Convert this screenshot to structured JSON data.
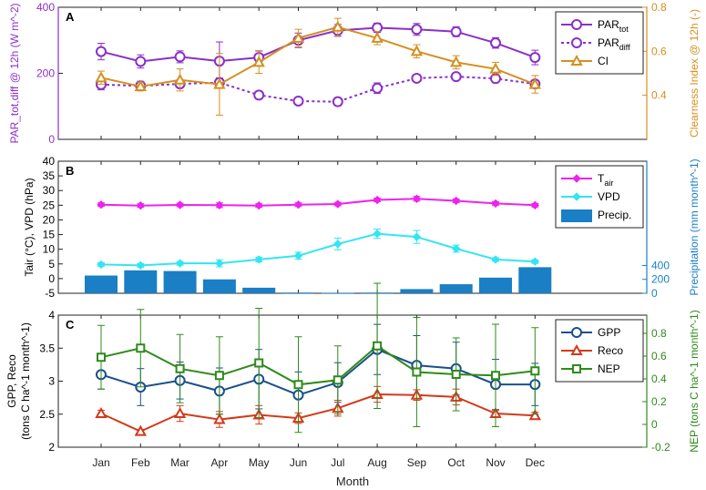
{
  "chart_data": [
    {
      "panel": "A",
      "type": "line",
      "categories": [
        "Jan",
        "Feb",
        "Mar",
        "Apr",
        "May",
        "Jun",
        "Jul",
        "Aug",
        "Sep",
        "Oct",
        "Nov",
        "Dec"
      ],
      "ylabel_left": "PAR_tot,diff @ 12h (W m^-2)",
      "ylabel_right": "Clearness Index @ 12h (-)",
      "ylim_left": [
        0,
        400
      ],
      "ylim_right": [
        0.2,
        0.8
      ],
      "yticks_left": [
        "0",
        "200",
        "400"
      ],
      "yticks_right": [
        "0.4",
        "0.6",
        "0.8"
      ],
      "series": [
        {
          "name": "PAR_tot",
          "label_main": "PAR",
          "label_sub": "tot",
          "axis": "left",
          "color": "#8b2fc9",
          "marker": "circle",
          "dash": false,
          "values": [
            266,
            236,
            250,
            237,
            248,
            300,
            330,
            338,
            333,
            326,
            292,
            248
          ],
          "errors": [
            25,
            20,
            18,
            58,
            20,
            22,
            18,
            14,
            18,
            15,
            16,
            22
          ]
        },
        {
          "name": "PAR_diff",
          "label_main": "PAR",
          "label_sub": "diff",
          "axis": "left",
          "color": "#8b2fc9",
          "marker": "circle",
          "dash": true,
          "values": [
            166,
            162,
            168,
            172,
            134,
            116,
            114,
            155,
            185,
            190,
            184,
            168
          ],
          "errors": [
            16,
            14,
            12,
            14,
            12,
            10,
            12,
            16,
            10,
            10,
            12,
            10
          ]
        },
        {
          "name": "CI",
          "label_main": "CI",
          "label_sub": "",
          "axis": "right",
          "color": "#d4901e",
          "marker": "triangle",
          "dash": false,
          "values": [
            0.48,
            0.44,
            0.47,
            0.45,
            0.55,
            0.66,
            0.71,
            0.66,
            0.6,
            0.55,
            0.52,
            0.45
          ],
          "errors": [
            0.03,
            0.02,
            0.05,
            0.14,
            0.05,
            0.04,
            0.04,
            0.03,
            0.03,
            0.03,
            0.03,
            0.04
          ]
        }
      ]
    },
    {
      "panel": "B",
      "type": "line",
      "categories": [
        "Jan",
        "Feb",
        "Mar",
        "Apr",
        "May",
        "Jun",
        "Jul",
        "Aug",
        "Sep",
        "Oct",
        "Nov",
        "Dec"
      ],
      "ylabel_left": "Tair (°C), VPD (hPa)",
      "ylabel_right": "Precipitation (mm month^-1)",
      "ylim_left": [
        -5,
        40
      ],
      "ylim_right": [
        0,
        1900
      ],
      "yticks_left": [
        "-5",
        "0",
        "5",
        "10",
        "15",
        "20",
        "25",
        "30",
        "35",
        "40"
      ],
      "yticks_right": [
        "0",
        "200",
        "400"
      ],
      "series": [
        {
          "name": "T_air",
          "label_main": "T",
          "label_sub": "air",
          "axis": "left",
          "color": "#ee22ee",
          "marker": "diamond",
          "values": [
            25.2,
            24.9,
            25.1,
            25.0,
            24.9,
            25.2,
            25.4,
            26.8,
            27.2,
            26.5,
            25.6,
            25.0
          ],
          "errors": [
            0.6,
            0.6,
            0.6,
            0.8,
            0.6,
            0.6,
            0.6,
            0.6,
            0.8,
            0.6,
            0.6,
            0.6
          ]
        },
        {
          "name": "VPD",
          "label_main": "VPD",
          "label_sub": "",
          "axis": "left",
          "color": "#33e5f2",
          "marker": "diamond",
          "values": [
            4.8,
            4.5,
            5.2,
            5.2,
            6.5,
            7.8,
            11.8,
            15.3,
            14.2,
            10.2,
            6.5,
            5.8
          ],
          "errors": [
            0.6,
            0.6,
            0.6,
            1.2,
            0.8,
            1.2,
            2.0,
            1.6,
            2.2,
            1.2,
            0.6,
            0.6
          ]
        },
        {
          "name": "Precip.",
          "label_main": "Precip.",
          "label_sub": "",
          "axis": "right",
          "color": "#1a7fc4",
          "marker": "bar",
          "values": [
            255,
            330,
            320,
            200,
            80,
            10,
            5,
            10,
            60,
            130,
            225,
            375
          ],
          "errors": []
        }
      ]
    },
    {
      "panel": "C",
      "type": "line",
      "categories": [
        "Jan",
        "Feb",
        "Mar",
        "Apr",
        "May",
        "Jun",
        "Jul",
        "Aug",
        "Sep",
        "Oct",
        "Nov",
        "Dec"
      ],
      "xlabel": "Month",
      "ylabel_left_1": "GPP, Reco",
      "ylabel_left_2": "(tons C ha^-1 month^-1)",
      "ylabel_right": "NEP (tons C ha^-1 month^-1)",
      "ylim_left": [
        2,
        4
      ],
      "ylim_right": [
        -0.2,
        0.96
      ],
      "yticks_left": [
        "2",
        "2.5",
        "3",
        "3.5",
        "4"
      ],
      "yticks_right": [
        "-0.2",
        "0",
        "0.2",
        "0.4",
        "0.6",
        "0.8"
      ],
      "series": [
        {
          "name": "GPP",
          "label_main": "GPP",
          "label_sub": "",
          "axis": "left",
          "color": "#1a4f8b",
          "marker": "circle",
          "values": [
            3.1,
            2.91,
            3.01,
            2.85,
            3.03,
            2.79,
            2.98,
            3.48,
            3.24,
            3.19,
            2.95,
            2.95
          ],
          "errors": [
            0.22,
            0.28,
            0.28,
            0.35,
            0.45,
            0.35,
            0.3,
            0.38,
            0.45,
            0.4,
            0.38,
            0.32
          ]
        },
        {
          "name": "Reco",
          "label_main": "Reco",
          "label_sub": "",
          "axis": "left",
          "color": "#d23a1a",
          "marker": "triangle",
          "values": [
            2.51,
            2.24,
            2.51,
            2.42,
            2.49,
            2.44,
            2.59,
            2.8,
            2.79,
            2.76,
            2.51,
            2.48
          ],
          "errors": [
            0.05,
            0.03,
            0.12,
            0.12,
            0.14,
            0.08,
            0.12,
            0.12,
            0.08,
            0.12,
            0.05,
            0.05
          ]
        },
        {
          "name": "NEP",
          "label_main": "NEP",
          "label_sub": "",
          "axis": "right",
          "color": "#2f8a1a",
          "marker": "square",
          "values": [
            0.59,
            0.67,
            0.49,
            0.43,
            0.54,
            0.35,
            0.39,
            0.69,
            0.46,
            0.44,
            0.43,
            0.47
          ],
          "errors": [
            0.28,
            0.34,
            0.3,
            0.34,
            0.48,
            0.42,
            0.3,
            0.55,
            0.48,
            0.32,
            0.45,
            0.38
          ]
        }
      ]
    }
  ]
}
